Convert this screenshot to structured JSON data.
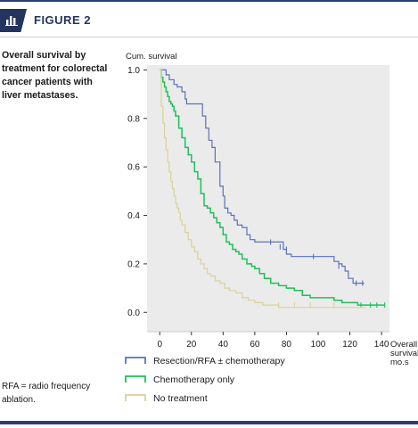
{
  "header": {
    "title": "FIGURE 2",
    "icon": "bar-chart-icon"
  },
  "caption": "Overall survival by treatment for colorectal cancer patients with liver metastases.",
  "footnote": "RFA = radio frequency ablation.",
  "colors": {
    "resection": "#5b72b8",
    "chemo": "#1fc05a",
    "none": "#d9d19a",
    "plot_bg": "#ebebeb",
    "brand": "#24335f"
  },
  "chart_data": {
    "type": "line",
    "ylabel": "Cum. survival",
    "xlabel": [
      "Overall",
      "survival,",
      "mo.s"
    ],
    "xlim": [
      -8,
      145
    ],
    "ylim": [
      -0.08,
      1.02
    ],
    "xticks": [
      0,
      20,
      40,
      60,
      80,
      100,
      120,
      140
    ],
    "yticks": [
      0.0,
      0.2,
      0.4,
      0.6,
      0.8,
      1.0
    ],
    "ytick_labels": [
      "0.0",
      "0.2",
      "0.4",
      "0.6",
      "0.8",
      "1.0"
    ],
    "series": [
      {
        "name": "Resection/RFA ± chemotherapy",
        "color_key": "resection",
        "x": [
          0,
          4,
          6,
          9,
          11,
          14,
          16,
          17,
          27,
          29,
          31,
          33,
          35,
          38,
          40,
          41,
          43,
          45,
          47,
          49,
          52,
          55,
          57,
          60,
          78,
          80,
          83,
          97,
          110,
          113,
          115,
          117,
          119,
          122,
          129
        ],
        "y": [
          1.0,
          0.98,
          0.96,
          0.94,
          0.93,
          0.91,
          0.88,
          0.86,
          0.81,
          0.76,
          0.71,
          0.68,
          0.62,
          0.52,
          0.48,
          0.43,
          0.41,
          0.4,
          0.38,
          0.36,
          0.35,
          0.32,
          0.3,
          0.29,
          0.26,
          0.24,
          0.23,
          0.23,
          0.21,
          0.2,
          0.19,
          0.17,
          0.14,
          0.12,
          0.12
        ],
        "censors": [
          [
            70,
            0.29
          ],
          [
            76,
            0.27
          ],
          [
            80,
            0.26
          ],
          [
            97,
            0.23
          ],
          [
            113,
            0.19
          ],
          [
            124,
            0.12
          ],
          [
            128,
            0.12
          ]
        ]
      },
      {
        "name": "Chemotherapy only",
        "color_key": "chemo",
        "x": [
          0,
          1,
          2,
          3,
          4,
          5,
          6,
          7,
          8,
          9,
          10,
          12,
          14,
          16,
          18,
          20,
          22,
          24,
          26,
          28,
          30,
          32,
          34,
          36,
          38,
          40,
          42,
          44,
          46,
          48,
          50,
          52,
          55,
          58,
          60,
          63,
          66,
          70,
          75,
          80,
          85,
          90,
          95,
          100,
          110,
          115,
          125,
          135,
          142
        ],
        "y": [
          1.0,
          0.97,
          0.95,
          0.93,
          0.91,
          0.89,
          0.87,
          0.86,
          0.85,
          0.83,
          0.81,
          0.76,
          0.72,
          0.68,
          0.65,
          0.62,
          0.58,
          0.55,
          0.49,
          0.44,
          0.43,
          0.41,
          0.39,
          0.37,
          0.35,
          0.32,
          0.29,
          0.28,
          0.26,
          0.25,
          0.24,
          0.22,
          0.2,
          0.19,
          0.18,
          0.16,
          0.14,
          0.12,
          0.11,
          0.1,
          0.09,
          0.07,
          0.06,
          0.06,
          0.05,
          0.04,
          0.03,
          0.03,
          0.03
        ],
        "censors": [
          [
            127,
            0.03
          ],
          [
            133,
            0.03
          ],
          [
            137,
            0.03
          ],
          [
            142,
            0.03
          ]
        ]
      },
      {
        "name": "No treatment",
        "color_key": "none",
        "x": [
          0,
          1,
          2,
          3,
          4,
          5,
          6,
          7,
          8,
          9,
          10,
          11,
          12,
          13,
          14,
          16,
          18,
          20,
          22,
          24,
          26,
          28,
          30,
          32,
          35,
          38,
          41,
          44,
          48,
          52,
          56,
          60,
          65,
          70,
          75,
          85,
          95,
          110,
          120,
          130
        ],
        "y": [
          1.0,
          0.85,
          0.78,
          0.72,
          0.67,
          0.62,
          0.58,
          0.54,
          0.51,
          0.48,
          0.45,
          0.43,
          0.41,
          0.38,
          0.36,
          0.33,
          0.3,
          0.27,
          0.25,
          0.22,
          0.2,
          0.18,
          0.16,
          0.15,
          0.13,
          0.12,
          0.1,
          0.09,
          0.08,
          0.06,
          0.05,
          0.04,
          0.03,
          0.03,
          0.02,
          0.02,
          0.02,
          0.02,
          0.02,
          0.02
        ],
        "censors": [
          [
            75,
            0.03
          ],
          [
            85,
            0.03
          ],
          [
            95,
            0.03
          ],
          [
            110,
            0.03
          ]
        ]
      }
    ],
    "legend": "bottom"
  }
}
